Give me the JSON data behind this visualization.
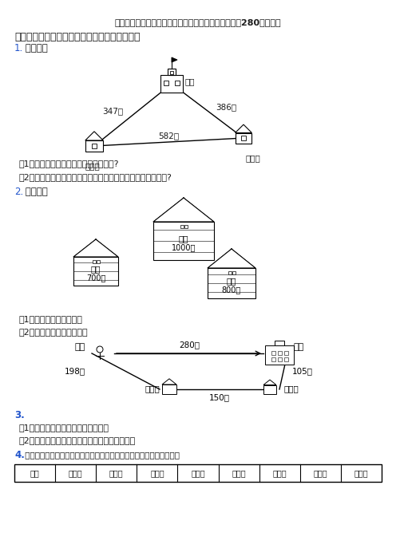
{
  "title": "北师大版完整版新精选小学二年级数学下册应用题大全280题含答案",
  "section1": "一、北师大小学数学解决问题二年级下册应用题",
  "q1_num": "1.",
  "q1_text": " 上学去。",
  "q1_sub1": "（1）小强到学校比小华到学校远多少米?",
  "q1_sub2": "（2）小华到小强家，叫小强一起去学校，小华一共走了多少米?",
  "q2_num": "2.",
  "q2_text": " 看图回答",
  "q2_sub1": "（1）一共有多少袋麦子？",
  "q2_sub2": "（2）麦子比稻谷多多少袋？",
  "q3_num": "3.",
  "q3_sub1": "（1）小红从家到公园，走哪条路近？",
  "q3_sub2": "（2）从公园到小明家比从公园到学校近多少米？",
  "q4_num": "4.",
  "q4_text": " 下面是小刘爸爸记录的这一周汽车的里程表读数。（每天收车时记录）",
  "table_headers": [
    "时间",
    "上周日",
    "星期一",
    "星期二",
    "星期三",
    "星期四",
    "星期五",
    "星期六",
    "星期日"
  ],
  "dist_347": "347米",
  "dist_386": "386米",
  "dist_582": "582米",
  "label_school": "学校",
  "label_hua": "小华家",
  "label_qiang": "小强家",
  "label_daoguo": "稻谷",
  "label_1000": "1000袋",
  "label_maizi_l": "麦子",
  "label_700": "700袋",
  "label_maizi_r": "麦子",
  "label_800": "800袋",
  "label_park": "公园",
  "label_school2": "学校",
  "label_ming": "小明家",
  "label_hong": "小红家",
  "dist_280": "280米",
  "dist_198": "198米",
  "dist_105": "105米",
  "dist_150": "150米",
  "bg_color": "#ffffff",
  "text_color": "#1a1a1a",
  "blue_color": "#2255cc",
  "gray_color": "#555555"
}
